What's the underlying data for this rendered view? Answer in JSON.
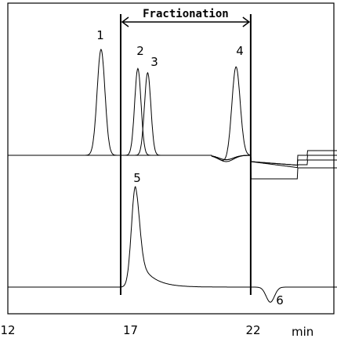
{
  "chart_data": {
    "type": "line",
    "title": "",
    "xlabel": "",
    "x_unit": "min",
    "xlim": [
      12,
      25.5
    ],
    "x_ticks": [
      12,
      17,
      22
    ],
    "fractionation": {
      "label": "Fractionation",
      "start": 16.6,
      "end": 21.9
    },
    "annotations": [
      {
        "text": "1",
        "x": 15.9
      },
      {
        "text": "2",
        "x": 17.3
      },
      {
        "text": "3",
        "x": 17.8
      },
      {
        "text": "4",
        "x": 21.4
      },
      {
        "text": "5",
        "x": 17.1
      },
      {
        "text": "6",
        "x": 22.9
      }
    ],
    "upper_panel": {
      "baseline": 0,
      "peaks": [
        {
          "name": "1",
          "x": 15.8,
          "height": 1.0
        },
        {
          "name": "2",
          "x": 17.3,
          "height": 0.82
        },
        {
          "name": "3",
          "x": 17.7,
          "height": 0.78
        },
        {
          "name": "4",
          "x": 21.3,
          "height": 0.86
        }
      ]
    },
    "lower_panel": {
      "baseline": 0,
      "peaks": [
        {
          "name": "5",
          "x": 17.2,
          "height": 1.0
        },
        {
          "name": "6",
          "x": 22.7,
          "height": -0.15
        }
      ]
    }
  }
}
